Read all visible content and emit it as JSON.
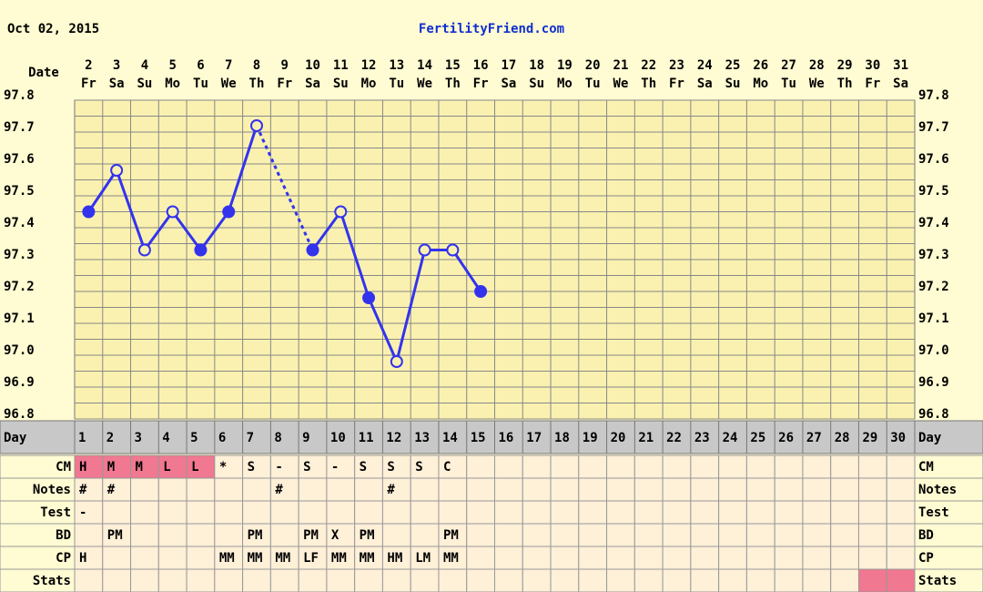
{
  "header": {
    "date": "Oct 02, 2015",
    "site": "FertilityFriend.com"
  },
  "chart_data": {
    "type": "line",
    "x_label": "Date",
    "categories": [
      "2",
      "3",
      "4",
      "5",
      "6",
      "7",
      "8",
      "9",
      "10",
      "11",
      "12",
      "13",
      "14",
      "15",
      "16",
      "17",
      "18",
      "19",
      "20",
      "21",
      "22",
      "23",
      "24",
      "25",
      "26",
      "27",
      "28",
      "29",
      "30",
      "31"
    ],
    "weekdays": [
      "Fr",
      "Sa",
      "Su",
      "Mo",
      "Tu",
      "We",
      "Th",
      "Fr",
      "Sa",
      "Su",
      "Mo",
      "Tu",
      "We",
      "Th",
      "Fr",
      "Sa",
      "Su",
      "Mo",
      "Tu",
      "We",
      "Th",
      "Fr",
      "Sa",
      "Su",
      "Mo",
      "Tu",
      "We",
      "Th",
      "Fr",
      "Sa"
    ],
    "series": [
      {
        "color": "#3333ee",
        "values": [
          97.45,
          97.58,
          97.33,
          97.45,
          97.33,
          97.45,
          97.72,
          null,
          97.33,
          97.45,
          97.18,
          96.98,
          97.33,
          97.33,
          97.2,
          null,
          null,
          null,
          null,
          null,
          null,
          null,
          null,
          null,
          null,
          null,
          null,
          null,
          null,
          null
        ],
        "filled": [
          true,
          false,
          false,
          false,
          true,
          true,
          false,
          null,
          true,
          false,
          true,
          false,
          false,
          false,
          true,
          null,
          null,
          null,
          null,
          null,
          null,
          null,
          null,
          null,
          null,
          null,
          null,
          null,
          null,
          null
        ]
      }
    ],
    "ylim": [
      96.8,
      97.8
    ],
    "yticks": [
      {
        "value": 96.8,
        "label": "96.8"
      },
      {
        "value": 96.9,
        "label": "96.9"
      },
      {
        "value": 97,
        "label": "97.0"
      },
      {
        "value": 97.1,
        "label": "97.1"
      },
      {
        "value": 97.2,
        "label": "97.2"
      },
      {
        "value": 97.3,
        "label": "97.3"
      },
      {
        "value": 97.4,
        "label": "97.4"
      },
      {
        "value": 97.5,
        "label": "97.5"
      },
      {
        "value": 97.6,
        "label": "97.6"
      },
      {
        "value": 97.7,
        "label": "97.7"
      },
      {
        "value": 97.8,
        "label": "97.8"
      }
    ],
    "grid": true
  },
  "table": {
    "day_label": "Day",
    "days": [
      1,
      2,
      3,
      4,
      5,
      6,
      7,
      8,
      9,
      10,
      11,
      12,
      13,
      14,
      15,
      16,
      17,
      18,
      19,
      20,
      21,
      22,
      23,
      24,
      25,
      26,
      27,
      28,
      29,
      30
    ],
    "rows": [
      {
        "label": "CM",
        "cells": [
          "H",
          "M",
          "M",
          "L",
          "L",
          "*",
          "S",
          "-",
          "S",
          "-",
          "S",
          "S",
          "S",
          "C",
          null,
          null,
          null,
          null,
          null,
          null,
          null,
          null,
          null,
          null,
          null,
          null,
          null,
          null,
          null,
          null
        ],
        "highlight": [
          true,
          true,
          true,
          true,
          true,
          null,
          null,
          null,
          null,
          null,
          null,
          null,
          null,
          null,
          null,
          null,
          null,
          null,
          null,
          null,
          null,
          null,
          null,
          null,
          null,
          null,
          null,
          null,
          null,
          null
        ]
      },
      {
        "label": "Notes",
        "cells": [
          "#",
          "#",
          null,
          null,
          null,
          null,
          null,
          "#",
          null,
          null,
          null,
          "#",
          null,
          null,
          null,
          null,
          null,
          null,
          null,
          null,
          null,
          null,
          null,
          null,
          null,
          null,
          null,
          null,
          null,
          null
        ]
      },
      {
        "label": "Test",
        "cells": [
          "-",
          null,
          null,
          null,
          null,
          null,
          null,
          null,
          null,
          null,
          null,
          null,
          null,
          null,
          null,
          null,
          null,
          null,
          null,
          null,
          null,
          null,
          null,
          null,
          null,
          null,
          null,
          null,
          null,
          null
        ]
      },
      {
        "label": "BD",
        "cells": [
          null,
          "PM",
          null,
          null,
          null,
          null,
          "PM",
          null,
          "PM",
          "X",
          "PM",
          null,
          null,
          "PM",
          null,
          null,
          null,
          null,
          null,
          null,
          null,
          null,
          null,
          null,
          null,
          null,
          null,
          null,
          null,
          null
        ]
      },
      {
        "label": "CP",
        "cells": [
          "H",
          null,
          null,
          null,
          null,
          "MM",
          "MM",
          "MM",
          "LF",
          "MM",
          "MM",
          "HM",
          "LM",
          "MM",
          null,
          null,
          null,
          null,
          null,
          null,
          null,
          null,
          null,
          null,
          null,
          null,
          null,
          null,
          null,
          null
        ]
      },
      {
        "label": "Stats",
        "cells": [
          null,
          null,
          null,
          null,
          null,
          null,
          null,
          null,
          null,
          null,
          null,
          null,
          null,
          null,
          null,
          null,
          null,
          null,
          null,
          null,
          null,
          null,
          null,
          null,
          null,
          null,
          null,
          null,
          null,
          null
        ],
        "highlight": [
          null,
          null,
          null,
          null,
          null,
          null,
          null,
          null,
          null,
          null,
          null,
          null,
          null,
          null,
          null,
          null,
          null,
          null,
          null,
          null,
          null,
          null,
          null,
          null,
          null,
          null,
          null,
          null,
          true,
          true
        ]
      }
    ]
  }
}
